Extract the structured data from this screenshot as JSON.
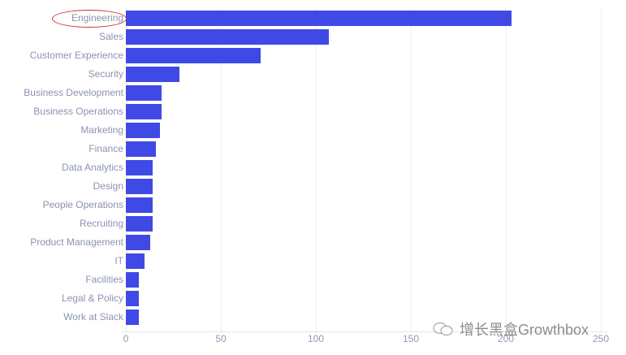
{
  "chart_data": {
    "type": "bar",
    "orientation": "horizontal",
    "title": "",
    "xlabel": "",
    "ylabel": "",
    "xlim": [
      0,
      250
    ],
    "x_ticks": [
      "0",
      "50",
      "100",
      "150",
      "200",
      "250"
    ],
    "grid": true,
    "categories": [
      "Engineering",
      "Sales",
      "Customer Experience",
      "Security",
      "Business Development",
      "Business Operations",
      "Marketing",
      "Finance",
      "Data Analytics",
      "Design",
      "People Operations",
      "Recruiting",
      "Product Management",
      "IT",
      "Facilities",
      "Legal & Policy",
      "Work at Slack"
    ],
    "values": [
      203,
      107,
      71,
      28,
      19,
      19,
      18,
      16,
      14,
      14,
      14,
      14,
      13,
      10,
      7,
      7,
      7
    ],
    "bar_color": "#3f4ae6",
    "annotation": {
      "type": "ellipse",
      "target": "Engineering",
      "color": "#d02b2b"
    }
  },
  "watermark": {
    "text": "增长黑盒Growthbox",
    "icon": "wechat-icon"
  }
}
